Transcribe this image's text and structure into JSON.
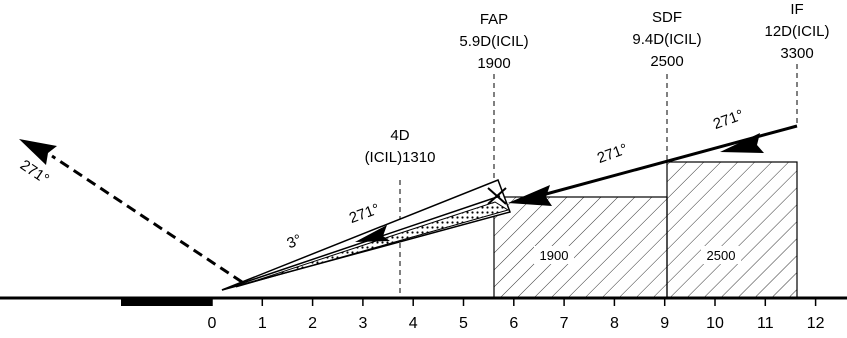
{
  "scale": {
    "ticks": [
      "0",
      "1",
      "2",
      "3",
      "4",
      "5",
      "6",
      "7",
      "8",
      "9",
      "10",
      "11",
      "12"
    ]
  },
  "fixes": {
    "fap": {
      "lines": [
        "FAP",
        "5.9D(ICIL)",
        "1900"
      ]
    },
    "sdf": {
      "lines": [
        "SDF",
        "9.4D(ICIL)",
        "2500"
      ]
    },
    "if": {
      "lines": [
        "IF",
        "12D(ICIL)",
        "3300"
      ]
    },
    "d4": {
      "lines": [
        "4D",
        "(ICIL)1310"
      ]
    }
  },
  "segments": {
    "intermediate_course": "271°",
    "initial_course": "271°",
    "final_course": "271°",
    "missed_course": "271°",
    "glide_angle": "3°"
  },
  "minimums": {
    "fap_to_sdf": "1900",
    "sdf_to_if": "2500"
  },
  "colors": {
    "ink": "#000000",
    "background": "#ffffff"
  }
}
